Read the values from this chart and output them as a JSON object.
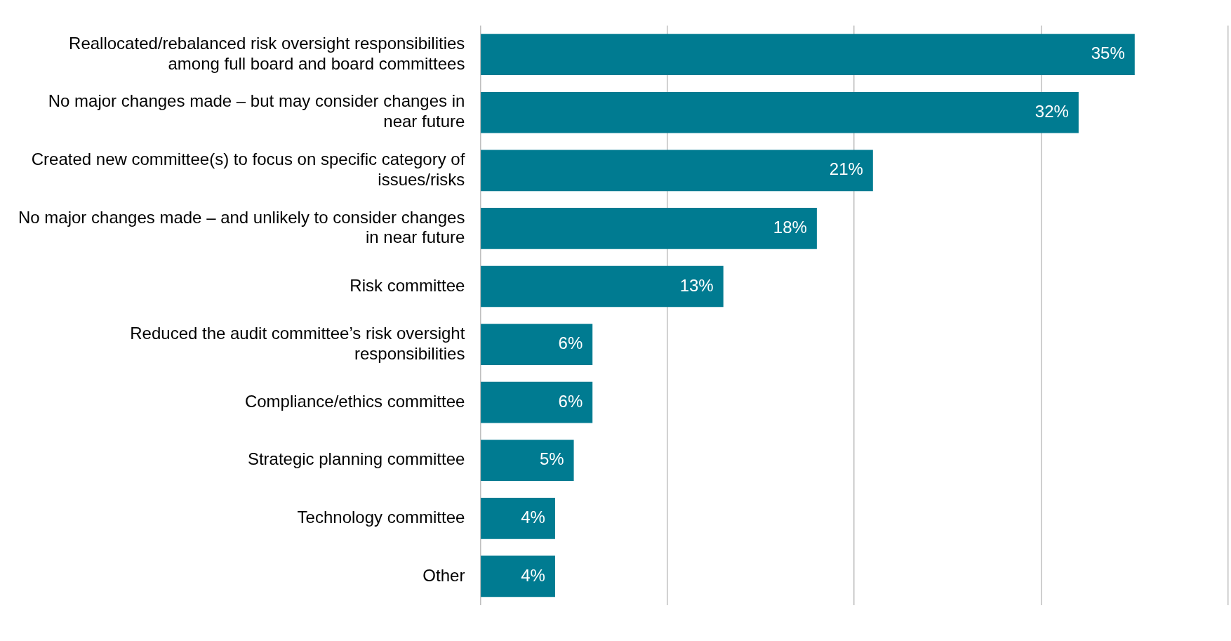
{
  "chart_data": {
    "type": "bar",
    "orientation": "horizontal",
    "categories": [
      "Reallocated/rebalanced risk oversight responsibilities among full board and board committees",
      "No major changes made – but may consider changes in near future",
      "Created new committee(s) to focus on specific category of issues/risks",
      "No major changes made – and unlikely to consider changes in near future",
      "Risk committee",
      "Reduced the audit committee’s risk oversight responsibilities",
      "Compliance/ethics committee",
      "Strategic planning committee",
      "Technology committee",
      "Other"
    ],
    "values": [
      35,
      32,
      21,
      18,
      13,
      6,
      6,
      5,
      4,
      4
    ],
    "value_labels": [
      "35%",
      "32%",
      "21%",
      "18%",
      "13%",
      "6%",
      "6%",
      "5%",
      "4%",
      "4%"
    ],
    "color": "#007b91",
    "xlim": [
      0,
      40
    ],
    "xticks": [
      {
        "value": 0,
        "label": null
      },
      {
        "value": 10,
        "label": null
      },
      {
        "value": 20,
        "label": null
      },
      {
        "value": 30,
        "label": null
      },
      {
        "value": 40,
        "label": null
      }
    ],
    "grid": "x",
    "tick_labels": "y",
    "legend": false
  }
}
